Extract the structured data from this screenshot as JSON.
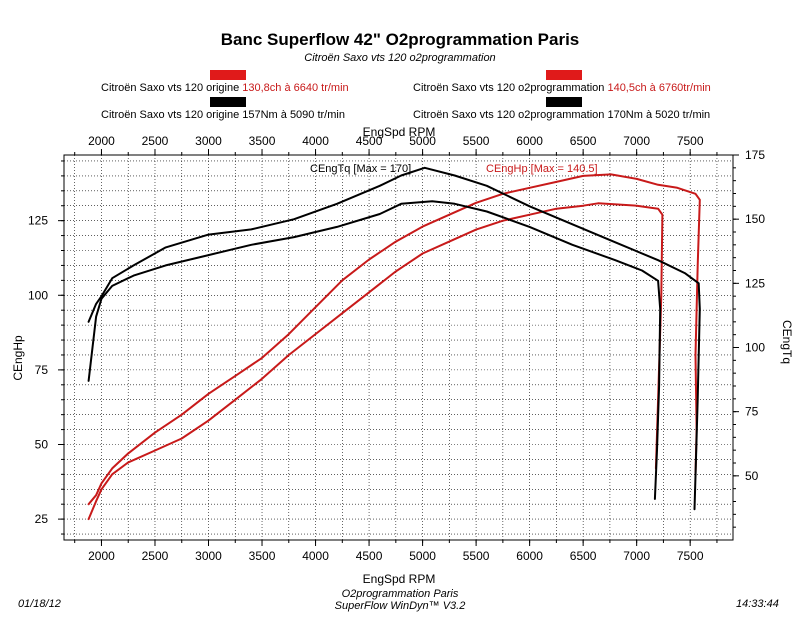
{
  "header": {
    "title": "Banc Superflow 42\" O2programmation Paris",
    "subtitle": "Citroën Saxo vts 120 o2programmation"
  },
  "legend": {
    "left_hp_name": "Citroën Saxo vts 120 origine",
    "left_hp_value": "130,8ch à 6640 tr/min",
    "left_tq_name": "Citroën Saxo vts 120 origine",
    "left_tq_value": "157Nm à 5090 tr/min",
    "right_hp_name": "Citroën Saxo vts 120 o2programmation",
    "right_hp_value": "140,5ch à 6760tr/min",
    "right_tq_name": "Citroën Saxo vts 120 o2programmation",
    "right_tq_value": "170Nm à 5020 tr/min"
  },
  "footer": {
    "date": "01/18/12",
    "time": "14:33:44",
    "line1": "O2programmation Paris",
    "line2": "SuperFlow WinDyn™ V3.2"
  },
  "colors": {
    "hp": "#c81a1a",
    "tq": "#000000",
    "frame": "#000000"
  },
  "chart_data": {
    "type": "line",
    "xlabel": "EngSpd RPM",
    "ylabel_left": "CEngHp",
    "ylabel_right": "CEngTq",
    "xlim": [
      1650,
      7900
    ],
    "xticks": [
      2000,
      2500,
      3000,
      3500,
      4000,
      4500,
      5000,
      5500,
      6000,
      6500,
      7000,
      7500
    ],
    "ylim_left": [
      18,
      147
    ],
    "yticks_left": [
      25,
      50,
      75,
      100,
      125
    ],
    "ylim_right": [
      25,
      175
    ],
    "yticks_right": [
      50,
      75,
      100,
      125,
      150,
      175
    ],
    "annotations": {
      "tq_max": "CEngTq [Max = 170]",
      "hp_max": "CEngHp [Max = 140.5]"
    },
    "grid": true,
    "series": [
      {
        "name": "Citroën Saxo vts 120 o2programmation",
        "quantity": "CEngHp",
        "axis": "left",
        "color": "#c81a1a",
        "x": [
          1880,
          1950,
          2000,
          2100,
          2250,
          2500,
          2750,
          3000,
          3250,
          3500,
          3750,
          4000,
          4250,
          4500,
          4750,
          5000,
          5250,
          5500,
          5750,
          6000,
          6250,
          6500,
          6760,
          7000,
          7200,
          7380,
          7550,
          7590,
          7570,
          7550,
          7560,
          7550
        ],
        "y": [
          30,
          33,
          37,
          42,
          47,
          54,
          60,
          67,
          73,
          79,
          87,
          96,
          105,
          112,
          118,
          123,
          127,
          131,
          134,
          136,
          138,
          140,
          140.5,
          139,
          137,
          136,
          134,
          132,
          110,
          80,
          55,
          40
        ]
      },
      {
        "name": "Citroën Saxo vts 120 origine",
        "quantity": "CEngHp",
        "axis": "left",
        "color": "#c81a1a",
        "x": [
          1880,
          1950,
          2000,
          2100,
          2250,
          2500,
          2750,
          3000,
          3250,
          3500,
          3750,
          4000,
          4250,
          4500,
          4750,
          5000,
          5250,
          5500,
          5750,
          6000,
          6250,
          6500,
          6640,
          7000,
          7200,
          7240,
          7230,
          7200,
          7180
        ],
        "y": [
          25,
          31,
          35,
          40,
          44,
          48,
          52,
          58,
          65,
          72,
          80,
          87,
          94,
          101,
          108,
          114,
          118,
          122,
          125,
          127,
          129,
          130,
          130.8,
          130,
          129,
          127,
          100,
          65,
          42
        ]
      },
      {
        "name": "Citroën Saxo vts 120 o2programmation",
        "quantity": "CEngTq",
        "axis": "right",
        "color": "#000000",
        "x": [
          1880,
          1950,
          2000,
          2100,
          2300,
          2600,
          3000,
          3400,
          3800,
          4200,
          4600,
          4800,
          5020,
          5300,
          5600,
          6000,
          6400,
          6800,
          7200,
          7450,
          7580,
          7590,
          7570,
          7550,
          7540
        ],
        "y": [
          110,
          117,
          120,
          127,
          132,
          139,
          144,
          146,
          150,
          156,
          163,
          167,
          170,
          167,
          163,
          155,
          148,
          141,
          134,
          129,
          125,
          115,
          80,
          50,
          37
        ]
      },
      {
        "name": "Citroën Saxo vts 120 origine",
        "quantity": "CEngTq",
        "axis": "right",
        "color": "#000000",
        "x": [
          1880,
          1950,
          2000,
          2100,
          2300,
          2600,
          3000,
          3400,
          3800,
          4200,
          4600,
          4800,
          5090,
          5300,
          5600,
          6000,
          6400,
          6800,
          7050,
          7200,
          7220,
          7210,
          7190,
          7170
        ],
        "y": [
          87,
          112,
          119,
          124,
          128,
          132,
          136,
          140,
          143,
          147,
          152,
          156,
          157,
          156,
          153,
          147,
          140,
          134,
          130,
          126,
          115,
          85,
          60,
          41
        ]
      }
    ]
  }
}
